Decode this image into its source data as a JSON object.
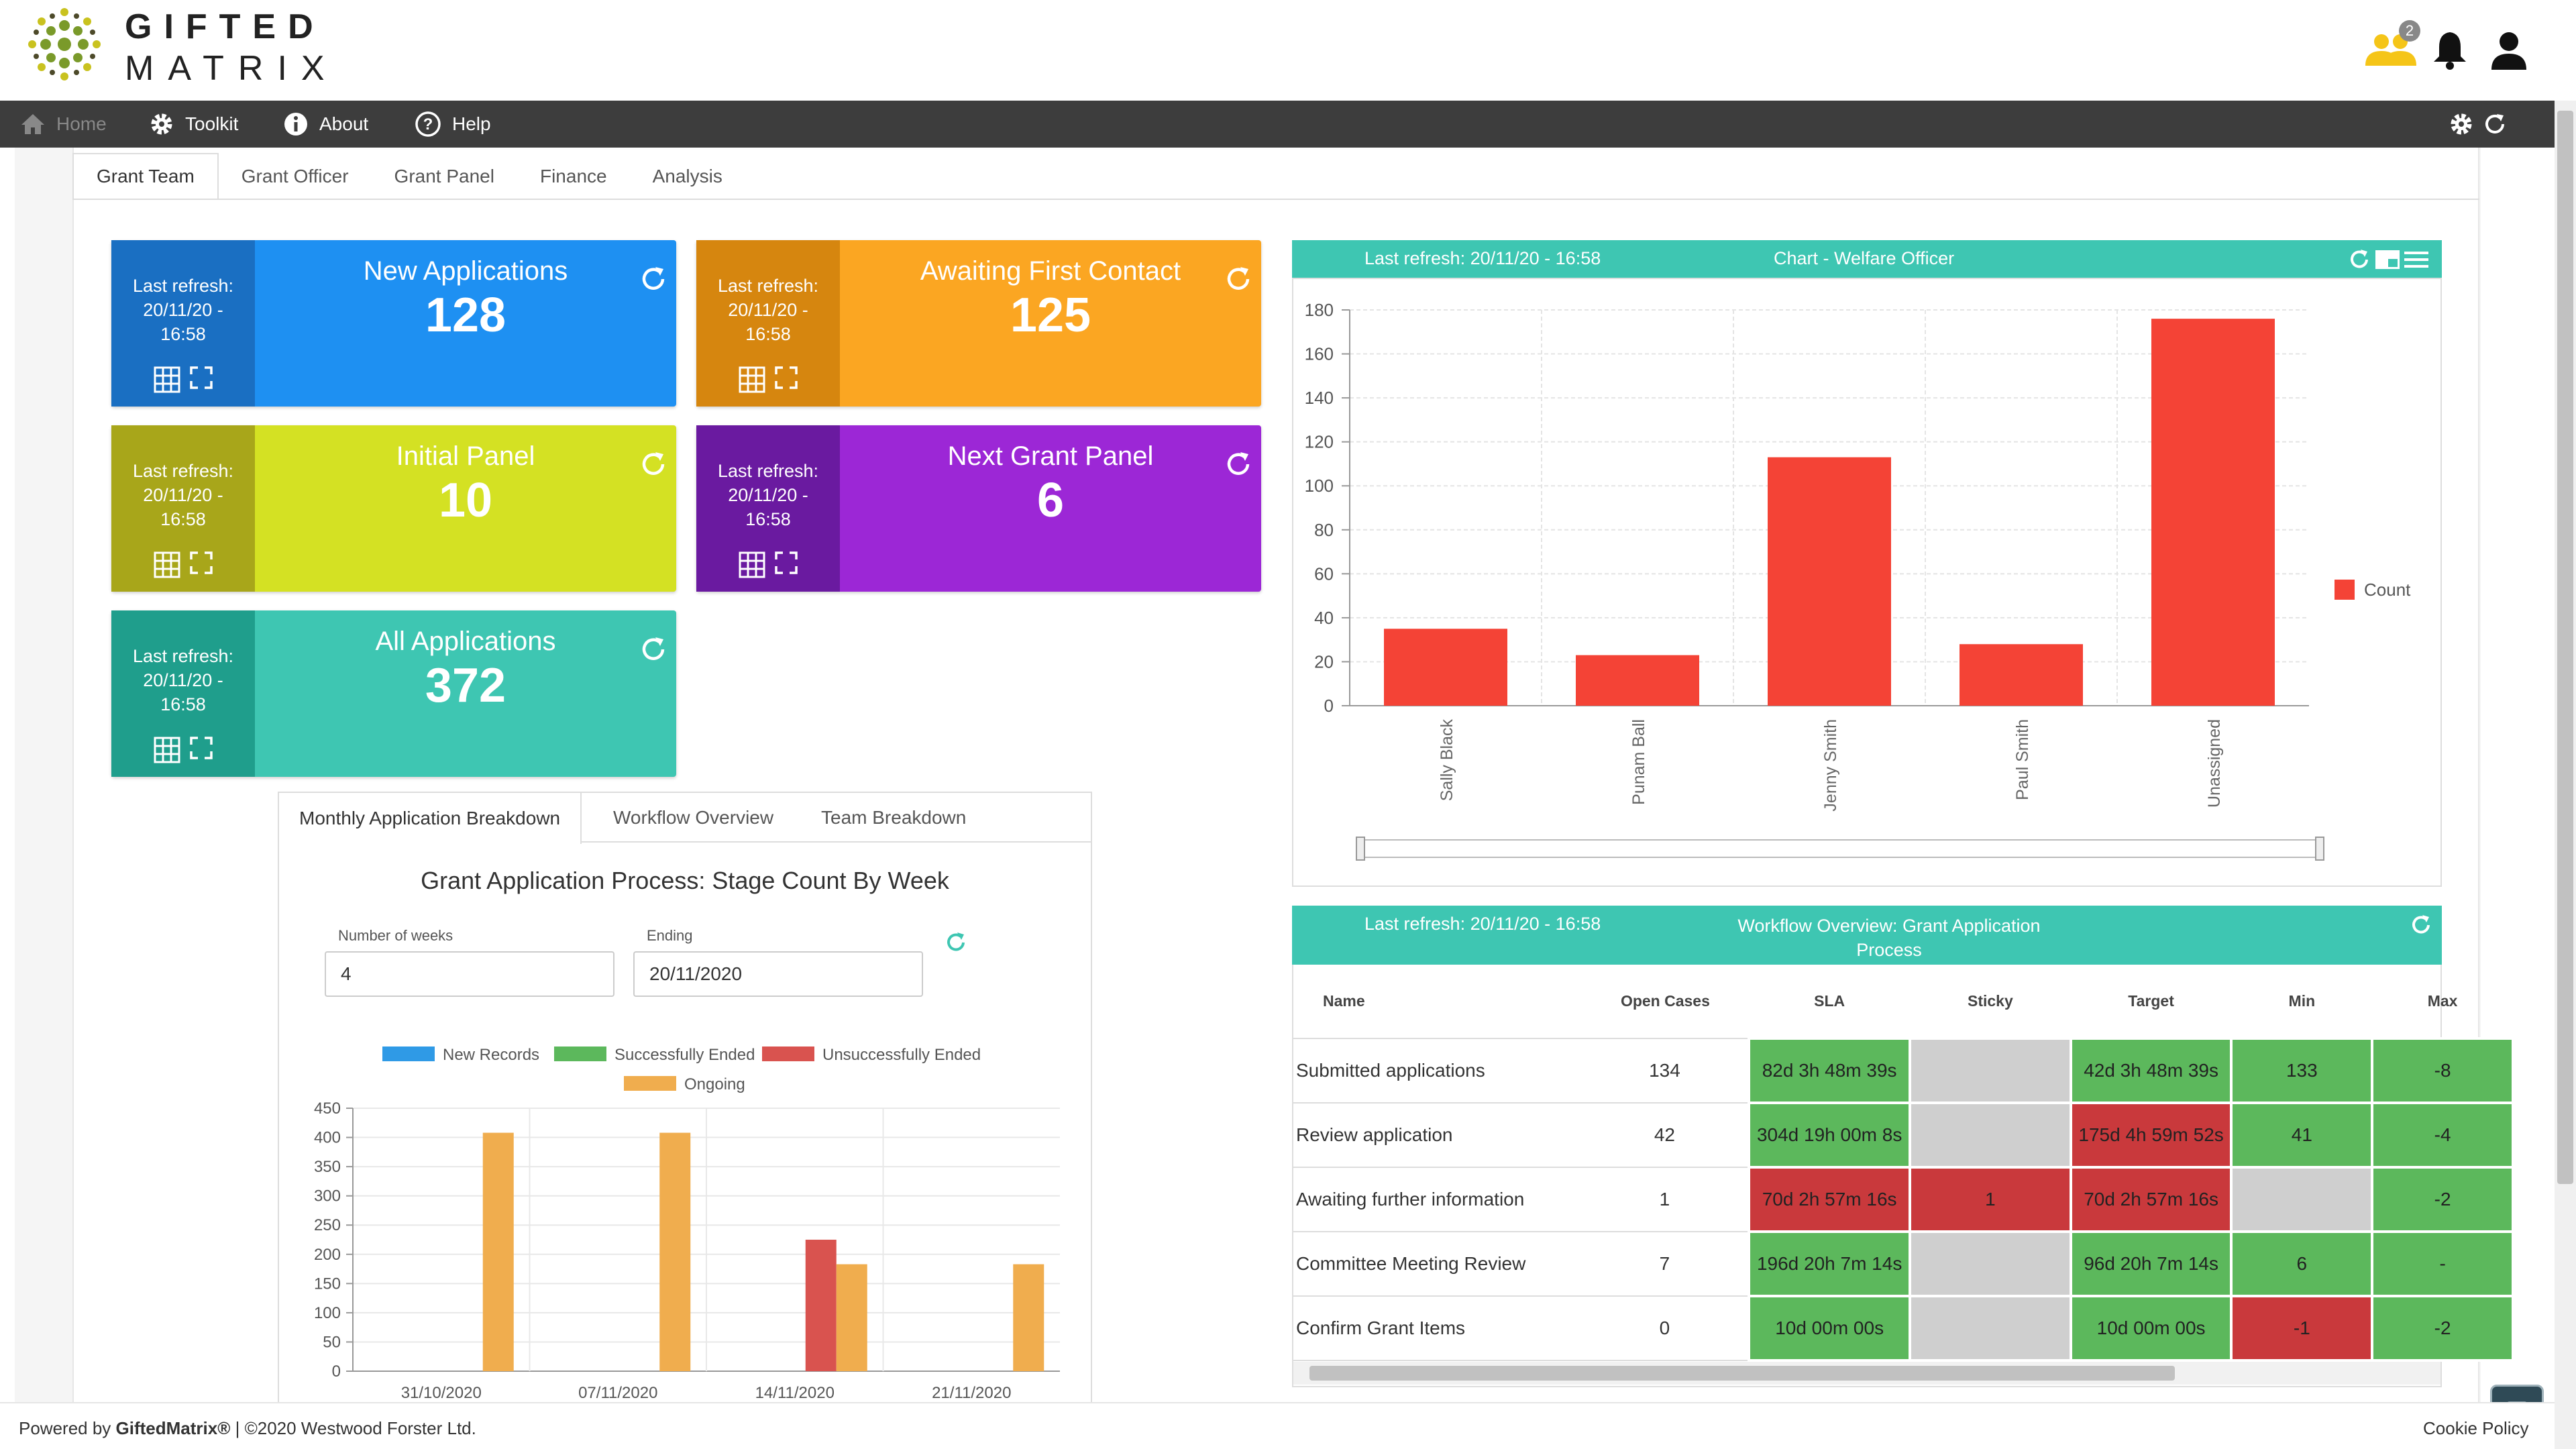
{
  "brand": {
    "line1": "GIFTED",
    "line2": "MATRIX"
  },
  "header": {
    "notification_count": "2"
  },
  "nav": {
    "items": [
      {
        "label": "Home"
      },
      {
        "label": "Toolkit"
      },
      {
        "label": "About"
      },
      {
        "label": "Help"
      }
    ]
  },
  "tabs": [
    "Grant Team",
    "Grant Officer",
    "Grant Panel",
    "Finance",
    "Analysis"
  ],
  "kpi": [
    {
      "title": "New Applications",
      "value": "128",
      "refresh_line1": "Last refresh:",
      "refresh_line2": "20/11/20 -",
      "refresh_line3": "16:58",
      "main_color": "#1e90f2",
      "side_color": "#1a6fc2"
    },
    {
      "title": "Awaiting First Contact",
      "value": "125",
      "refresh_line1": "Last refresh:",
      "refresh_line2": "20/11/20 -",
      "refresh_line3": "16:58",
      "main_color": "#fba622",
      "side_color": "#d6860f"
    },
    {
      "title": "Initial Panel",
      "value": "10",
      "refresh_line1": "Last refresh:",
      "refresh_line2": "20/11/20 -",
      "refresh_line3": "16:58",
      "main_color": "#d4e123",
      "side_color": "#a8a61a"
    },
    {
      "title": "Next Grant Panel",
      "value": "6",
      "refresh_line1": "Last refresh:",
      "refresh_line2": "20/11/20 -",
      "refresh_line3": "16:58",
      "main_color": "#9c27d6",
      "side_color": "#6a1aa0"
    },
    {
      "title": "All Applications",
      "value": "372",
      "refresh_line1": "Last refresh:",
      "refresh_line2": "20/11/20 -",
      "refresh_line3": "16:58",
      "main_color": "#3ec6b2",
      "side_color": "#1f9e8c"
    }
  ],
  "welfare_chart": {
    "refresh": "Last refresh: 20/11/20 - 16:58",
    "title": "Chart - Welfare Officer",
    "legend": "Count"
  },
  "monthly": {
    "tabs": [
      "Monthly Application Breakdown",
      "Workflow Overview",
      "Team Breakdown"
    ],
    "title": "Grant Application Process: Stage Count By Week",
    "weeks_label": "Number of weeks",
    "weeks_value": "4",
    "ending_label": "Ending",
    "ending_value": "20/11/2020"
  },
  "workflow": {
    "refresh": "Last refresh: 20/11/20 - 16:58",
    "title_line1": "Workflow Overview: Grant Application",
    "title_line2": "Process",
    "columns": [
      "Name",
      "Open Cases",
      "SLA",
      "Sticky",
      "Target",
      "Min",
      "Max"
    ],
    "rows": [
      {
        "name": "Submitted applications",
        "open": "134",
        "sla": "82d 3h 48m 39s",
        "sla_c": "green",
        "sticky": "",
        "sticky_c": "grey",
        "target": "42d 3h 48m 39s",
        "target_c": "green",
        "min": "133",
        "min_c": "green",
        "max": "-8",
        "max_c": "green"
      },
      {
        "name": "Review application",
        "open": "42",
        "sla": "304d 19h 00m 8s",
        "sla_c": "green",
        "sticky": "",
        "sticky_c": "grey",
        "target": "175d 4h 59m 52s",
        "target_c": "red",
        "min": "41",
        "min_c": "green",
        "max": "-4",
        "max_c": "green"
      },
      {
        "name": "Awaiting further information",
        "open": "1",
        "sla": "70d 2h 57m 16s",
        "sla_c": "red",
        "sticky": "1",
        "sticky_c": "red",
        "target": "70d 2h 57m 16s",
        "target_c": "red",
        "min": "",
        "min_c": "grey",
        "max": "-2",
        "max_c": "green"
      },
      {
        "name": "Committee Meeting Review",
        "open": "7",
        "sla": "196d 20h 7m 14s",
        "sla_c": "green",
        "sticky": "",
        "sticky_c": "grey",
        "target": "96d 20h 7m 14s",
        "target_c": "green",
        "min": "6",
        "min_c": "green",
        "max": "-",
        "max_c": "green"
      },
      {
        "name": "Confirm Grant Items",
        "open": "0",
        "sla": "10d 00m 00s",
        "sla_c": "green",
        "sticky": "",
        "sticky_c": "grey",
        "target": "10d 00m 00s",
        "target_c": "green",
        "min": "-1",
        "min_c": "red",
        "max": "-2",
        "max_c": "green"
      }
    ]
  },
  "footer": {
    "powered_prefix": "Powered by ",
    "powered_brand": "GiftedMatrix®",
    "copyright": " | ©2020 Westwood Forster Ltd.",
    "cookie": "Cookie Policy"
  },
  "colors": {
    "green": "#5cb85c",
    "red": "#c9393c",
    "grey": "#cfcfcf",
    "teal": "#3ec6b2"
  },
  "chart_data": [
    {
      "type": "bar",
      "categories": [
        "Sally Black",
        "Punam Ball",
        "Jenny Smith",
        "Paul Smith",
        "Unassigned"
      ],
      "series": [
        {
          "name": "Count",
          "values": [
            35,
            23,
            113,
            28,
            176
          ]
        }
      ],
      "ylim": [
        0,
        180
      ],
      "yticks": [
        0,
        20,
        40,
        60,
        80,
        100,
        120,
        140,
        160,
        180
      ],
      "color": "#f44336",
      "legend_position": "right"
    },
    {
      "type": "bar",
      "categories": [
        "31/10/2020",
        "07/11/2020",
        "14/11/2020",
        "21/11/2020"
      ],
      "series": [
        {
          "name": "New Records",
          "values": [
            0,
            0,
            0,
            0
          ],
          "color": "#2f9ae6"
        },
        {
          "name": "Successfully Ended",
          "values": [
            0,
            0,
            0,
            0
          ],
          "color": "#5cb85c"
        },
        {
          "name": "Unsuccessfully Ended",
          "values": [
            0,
            0,
            225,
            0
          ],
          "color": "#d9534f"
        },
        {
          "name": "Ongoing",
          "values": [
            408,
            408,
            183,
            183
          ],
          "color": "#f0ad4e"
        }
      ],
      "ylim": [
        0,
        450
      ],
      "yticks": [
        0,
        50,
        100,
        150,
        200,
        250,
        300,
        350,
        400,
        450
      ],
      "legend_position": "top"
    }
  ]
}
